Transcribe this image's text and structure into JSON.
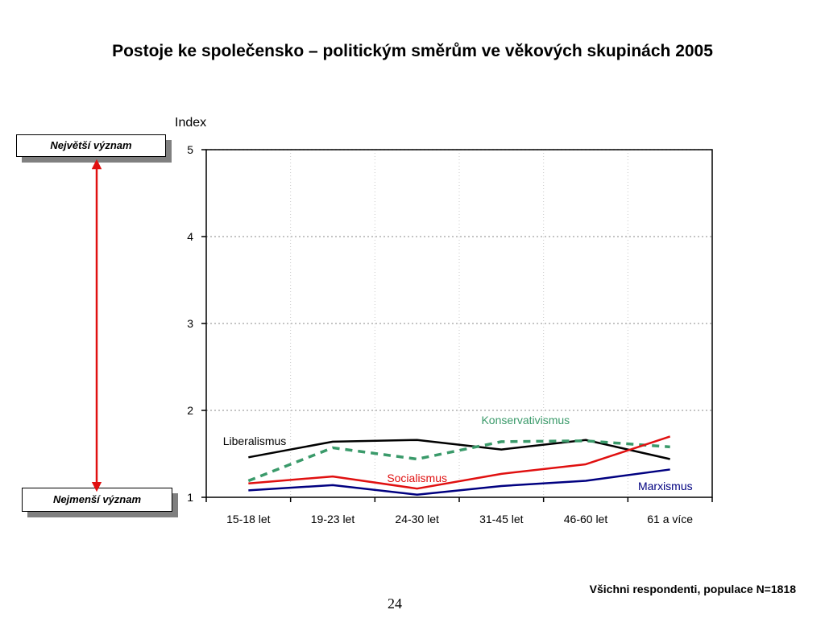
{
  "title": "Postoje ke společensko – politickým směrům ve věkových skupinách 2005",
  "scale": {
    "top_label": "Největší význam",
    "bottom_label": "Nejmenší význam",
    "arrow_color": "#e01010"
  },
  "footer_note": "Všichni respondenti, populace N=1818",
  "page_number": "24",
  "chart_data": {
    "type": "line",
    "ylabel": "Index",
    "xlabel": "",
    "ylim": [
      1,
      5
    ],
    "yticks": [
      1,
      2,
      3,
      4,
      5
    ],
    "grid": true,
    "categories": [
      "15-18 let",
      "19-23 let",
      "24-30 let",
      "31-45 let",
      "46-60 let",
      "61 a více"
    ],
    "series": [
      {
        "name": "Liberalismus",
        "color": "#000000",
        "style": "solid",
        "values": [
          1.46,
          1.64,
          1.66,
          1.55,
          1.66,
          1.44
        ]
      },
      {
        "name": "Konservativismus",
        "color": "#3a9a6a",
        "style": "dashed",
        "values": [
          1.19,
          1.57,
          1.44,
          1.64,
          1.65,
          1.58
        ]
      },
      {
        "name": "Socialismus",
        "color": "#e01010",
        "style": "solid",
        "values": [
          1.16,
          1.24,
          1.1,
          1.27,
          1.38,
          1.7
        ]
      },
      {
        "name": "Marxismus",
        "color": "#000080",
        "style": "solid",
        "values": [
          1.08,
          1.14,
          1.03,
          1.13,
          1.19,
          1.32
        ]
      }
    ]
  }
}
